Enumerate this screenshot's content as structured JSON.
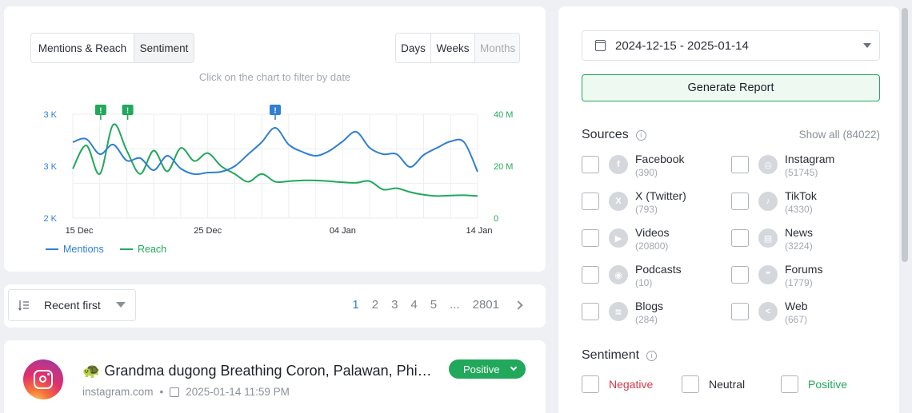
{
  "chart_controls": {
    "view_tabs": [
      "Mentions & Reach",
      "Sentiment"
    ],
    "period_tabs": [
      "Days",
      "Weeks",
      "Months"
    ],
    "hint": "Click on the chart to filter by date"
  },
  "chart_data": {
    "type": "line",
    "x_tick_labels": [
      "15 Dec",
      "25 Dec",
      "04 Jan",
      "14 Jan"
    ],
    "y_left_ticks": [
      "2 K",
      "3 K",
      "3 K"
    ],
    "y_right_ticks": [
      "0",
      "20 M",
      "40 M"
    ],
    "x": [
      "2024-12-15",
      "2024-12-16",
      "2024-12-17",
      "2024-12-18",
      "2024-12-19",
      "2024-12-20",
      "2024-12-21",
      "2024-12-22",
      "2024-12-23",
      "2024-12-24",
      "2024-12-25",
      "2024-12-26",
      "2024-12-27",
      "2024-12-28",
      "2024-12-29",
      "2024-12-30",
      "2024-12-31",
      "2025-01-01",
      "2025-01-02",
      "2025-01-03",
      "2025-01-04",
      "2025-01-05",
      "2025-01-06",
      "2025-01-07",
      "2025-01-08",
      "2025-01-09",
      "2025-01-10",
      "2025-01-11",
      "2025-01-12",
      "2025-01-13",
      "2025-01-14"
    ],
    "series": [
      {
        "name": "Mentions",
        "color": "#2f7fd2",
        "axis": "left",
        "values": [
          2950,
          2990,
          2800,
          2920,
          2720,
          2750,
          2600,
          2780,
          2620,
          2550,
          2570,
          2580,
          2650,
          2800,
          2950,
          3130,
          2920,
          2830,
          2780,
          2840,
          2960,
          3080,
          2880,
          2800,
          2800,
          2640,
          2790,
          2880,
          2960,
          2950,
          2580
        ],
        "range": [
          2000,
          3300
        ]
      },
      {
        "name": "Reach",
        "color": "#21a85b",
        "axis": "left",
        "values": [
          19000,
          28000,
          17000,
          36000,
          26000,
          17000,
          26000,
          18000,
          27000,
          22000,
          25000,
          20000,
          17000,
          14000,
          17000,
          14000,
          14200,
          14500,
          14500,
          14200,
          13800,
          13600,
          14200,
          11000,
          11500,
          10000,
          9000,
          8500,
          8700,
          8800,
          8500
        ],
        "range": [
          0,
          40000000
        ]
      }
    ],
    "event_markers": [
      {
        "date": "2024-12-16",
        "color": "#21a85b",
        "label": "!"
      },
      {
        "date": "2024-12-18",
        "color": "#21a85b",
        "label": "!"
      },
      {
        "date": "2024-12-30",
        "color": "#2f7fd2",
        "label": "!"
      }
    ],
    "legend": [
      "Mentions",
      "Reach"
    ]
  },
  "list_controls": {
    "sort_label": "Recent first",
    "pages": [
      "1",
      "2",
      "3",
      "4",
      "5",
      "...",
      "2801"
    ],
    "current_page": "1"
  },
  "post": {
    "title": "🐢 Grandma dugong Breathing Coron, Palawan, Philippines",
    "source": "instagram.com",
    "datetime": "2025-01-14 11:59 PM",
    "sentiment": "Positive"
  },
  "sidebar": {
    "date_range": "2024-12-15 - 2025-01-14",
    "generate_label": "Generate Report",
    "sources_title": "Sources",
    "show_all_label": "Show all",
    "show_all_count": "(84022)",
    "sources": [
      {
        "name": "Facebook",
        "count": "(390)",
        "icon": "facebook-icon",
        "glyph": "f"
      },
      {
        "name": "Instagram",
        "count": "(51745)",
        "icon": "instagram-icon",
        "glyph": "◎"
      },
      {
        "name": "X (Twitter)",
        "count": "(793)",
        "icon": "x-icon",
        "glyph": "X"
      },
      {
        "name": "TikTok",
        "count": "(4330)",
        "icon": "tiktok-icon",
        "glyph": "♪"
      },
      {
        "name": "Videos",
        "count": "(20800)",
        "icon": "play-icon",
        "glyph": "▶"
      },
      {
        "name": "News",
        "count": "(3224)",
        "icon": "news-icon",
        "glyph": "▤"
      },
      {
        "name": "Podcasts",
        "count": "(10)",
        "icon": "podcast-icon",
        "glyph": "◉"
      },
      {
        "name": "Forums",
        "count": "(1779)",
        "icon": "forum-icon",
        "glyph": "❞"
      },
      {
        "name": "Blogs",
        "count": "(284)",
        "icon": "rss-icon",
        "glyph": "≋"
      },
      {
        "name": "Web",
        "count": "(667)",
        "icon": "share-icon",
        "glyph": "<"
      }
    ],
    "sentiment_title": "Sentiment",
    "sentiment_options": [
      "Negative",
      "Neutral",
      "Positive"
    ]
  }
}
